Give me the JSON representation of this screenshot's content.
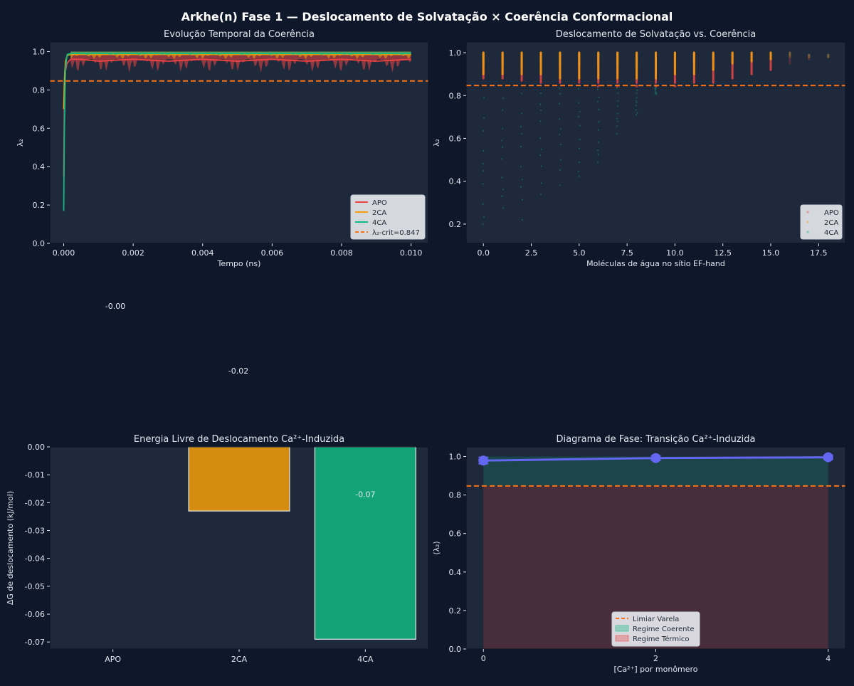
{
  "figure": {
    "suptitle": "Arkhe(n) Fase 1 — Deslocamento de Solvatação × Coerência Conformacional",
    "colors": {
      "background": "#0f172a",
      "axes": "#1e293b",
      "text": "#e2e8f0",
      "APO": "#ef4444",
      "2CA": "#f59e0b",
      "4CA": "#10b981",
      "threshold": "#f97316",
      "phase_line": "#6366f1"
    }
  },
  "chart_data": [
    {
      "id": "panel-time",
      "type": "line",
      "title": "Evolução Temporal da Coerência",
      "xlabel": "Tempo (ns)",
      "ylabel": "λ₂",
      "xlim": [
        -0.0004,
        0.0105
      ],
      "ylim": [
        0.0,
        1.05
      ],
      "xticks": [
        "0.000",
        "0.002",
        "0.004",
        "0.006",
        "0.008",
        "0.010"
      ],
      "yticks": [
        "0.0",
        "0.2",
        "0.4",
        "0.6",
        "0.8",
        "1.0"
      ],
      "series": [
        {
          "name": "APO",
          "x": [
            0.0,
            2e-05,
            5e-05,
            0.0001,
            0.0002,
            0.0005,
            0.001,
            0.002,
            0.003,
            0.004,
            0.005,
            0.006,
            0.007,
            0.008,
            0.009,
            0.01
          ],
          "values": [
            0.35,
            0.75,
            0.9,
            0.94,
            0.96,
            0.96,
            0.95,
            0.96,
            0.95,
            0.96,
            0.95,
            0.96,
            0.95,
            0.96,
            0.95,
            0.96
          ],
          "band_min": 0.89
        },
        {
          "name": "2CA",
          "x": [
            0.0,
            2e-05,
            5e-05,
            0.0001,
            0.0002,
            0.0005,
            0.001,
            0.002,
            0.003,
            0.004,
            0.005,
            0.006,
            0.007,
            0.008,
            0.009,
            0.01
          ],
          "values": [
            0.7,
            0.85,
            0.95,
            0.98,
            0.985,
            0.985,
            0.985,
            0.985,
            0.985,
            0.985,
            0.985,
            0.985,
            0.985,
            0.985,
            0.985,
            0.985
          ],
          "band_min": 0.96
        },
        {
          "name": "4CA",
          "x": [
            0.0,
            2e-05,
            5e-05,
            0.0001,
            0.0002,
            0.0005,
            0.001,
            0.002,
            0.003,
            0.004,
            0.005,
            0.006,
            0.007,
            0.008,
            0.009,
            0.01
          ],
          "values": [
            0.17,
            0.6,
            0.92,
            0.985,
            0.99,
            0.99,
            0.99,
            0.99,
            0.99,
            0.99,
            0.99,
            0.99,
            0.99,
            0.99,
            0.99,
            0.99
          ],
          "band_min": 0.98
        }
      ],
      "threshold": {
        "value": 0.847,
        "label": "λ₂-crit=0.847"
      },
      "legend": "lower-right"
    },
    {
      "id": "panel-scatter",
      "type": "scatter",
      "title": "Deslocamento de Solvatação vs. Coerência",
      "xlabel": "Moléculas de água no sítio EF-hand",
      "ylabel": "λ₂",
      "xlim": [
        -0.9,
        18.9
      ],
      "ylim": [
        0.11,
        1.05
      ],
      "xticks": [
        "0.0",
        "2.5",
        "5.0",
        "7.5",
        "10.0",
        "12.5",
        "15.0",
        "17.5"
      ],
      "yticks": [
        "0.2",
        "0.4",
        "0.6",
        "0.8",
        "1.0"
      ],
      "threshold": {
        "value": 0.847
      },
      "points_per_column": [
        {
          "x": 0,
          "APO": [
            0.88,
            1.0
          ],
          "2CA": [
            0.9,
            1.0
          ],
          "4CA": [
            0.2,
            1.0
          ]
        },
        {
          "x": 1,
          "APO": [
            0.88,
            1.0
          ],
          "2CA": [
            0.9,
            1.0
          ],
          "4CA": [
            0.25,
            1.0
          ]
        },
        {
          "x": 2,
          "APO": [
            0.87,
            1.0
          ],
          "2CA": [
            0.9,
            1.0
          ],
          "4CA": [
            0.2,
            1.0
          ]
        },
        {
          "x": 3,
          "APO": [
            0.86,
            1.0
          ],
          "2CA": [
            0.9,
            1.0
          ],
          "4CA": [
            0.3,
            1.0
          ]
        },
        {
          "x": 4,
          "APO": [
            0.86,
            1.0
          ],
          "2CA": [
            0.88,
            1.0
          ],
          "4CA": [
            0.35,
            1.0
          ]
        },
        {
          "x": 5,
          "APO": [
            0.85,
            1.0
          ],
          "2CA": [
            0.88,
            1.0
          ],
          "4CA": [
            0.4,
            1.0
          ]
        },
        {
          "x": 6,
          "APO": [
            0.84,
            1.0
          ],
          "2CA": [
            0.88,
            1.0
          ],
          "4CA": [
            0.45,
            1.0
          ]
        },
        {
          "x": 7,
          "APO": [
            0.84,
            1.0
          ],
          "2CA": [
            0.88,
            1.0
          ],
          "4CA": [
            0.6,
            1.0
          ]
        },
        {
          "x": 8,
          "APO": [
            0.84,
            1.0
          ],
          "2CA": [
            0.88,
            1.0
          ],
          "4CA": [
            0.7,
            1.0
          ]
        },
        {
          "x": 9,
          "APO": [
            0.84,
            1.0
          ],
          "2CA": [
            0.88,
            1.0
          ],
          "4CA": [
            0.8,
            1.0
          ]
        },
        {
          "x": 10,
          "APO": [
            0.84,
            1.0
          ],
          "2CA": [
            0.9,
            1.0
          ],
          "4CA": [
            0.9,
            1.0
          ]
        },
        {
          "x": 11,
          "APO": [
            0.85,
            1.0
          ],
          "2CA": [
            0.9,
            1.0
          ],
          "4CA": [
            0.95,
            1.0
          ]
        },
        {
          "x": 12,
          "APO": [
            0.86,
            1.0
          ],
          "2CA": [
            0.92,
            1.0
          ],
          "4CA": [
            0.97,
            1.0
          ]
        },
        {
          "x": 13,
          "APO": [
            0.88,
            1.0
          ],
          "2CA": [
            0.95,
            1.0
          ],
          "4CA": [
            0.98,
            1.0
          ]
        },
        {
          "x": 14,
          "APO": [
            0.9,
            1.0
          ],
          "2CA": [
            0.96,
            1.0
          ],
          "4CA": [
            0.99,
            1.0
          ]
        },
        {
          "x": 15,
          "APO": [
            0.92,
            1.0
          ],
          "2CA": [
            0.97,
            1.0
          ],
          "4CA": [
            0.99,
            1.0
          ]
        },
        {
          "x": 16,
          "APO": [
            0.95,
            1.0
          ],
          "2CA": [
            0.98,
            1.0
          ],
          "4CA": [
            0.99,
            1.0
          ]
        },
        {
          "x": 17,
          "APO": [
            0.97,
            0.99
          ],
          "2CA": [
            0.98,
            0.99
          ],
          "4CA": [
            0.98,
            0.99
          ]
        },
        {
          "x": 18,
          "APO": [
            0.98,
            0.99
          ],
          "2CA": [
            0.98,
            0.99
          ],
          "4CA": [
            0.98,
            0.99
          ]
        }
      ],
      "legend_entries": [
        "APO",
        "2CA",
        "4CA"
      ],
      "legend": "lower-right"
    },
    {
      "id": "panel-stray",
      "type": "table",
      "labels": [
        "-0.00",
        "-0.02"
      ]
    },
    {
      "id": "panel-bars",
      "type": "bar",
      "title": "Energia Livre de Deslocamento Ca²⁺-Induzida",
      "ylabel": "ΔG de deslocamento (kJ/mol)",
      "categories": [
        "APO",
        "2CA",
        "4CA"
      ],
      "values": [
        0.0,
        -0.023,
        -0.069
      ],
      "ylim": [
        -0.0725,
        0.0
      ],
      "yticks": [
        "0.00",
        "-0.01",
        "-0.02",
        "-0.03",
        "-0.04",
        "-0.05",
        "-0.06",
        "-0.07"
      ],
      "data_labels": [
        "",
        "",
        "-0.07"
      ]
    },
    {
      "id": "panel-phase",
      "type": "line",
      "title": "Diagrama de Fase: Transição Ca²⁺-Induzida",
      "xlabel": "[Ca²⁺] por monômero",
      "ylabel": "⟨λ₂⟩",
      "x": [
        0,
        2,
        4
      ],
      "values": [
        0.979,
        0.992,
        0.996
      ],
      "errors": [
        0.035,
        0.025,
        0.022
      ],
      "xlim": [
        -0.2,
        4.2
      ],
      "ylim": [
        0.0,
        1.05
      ],
      "xticks": [
        "0",
        "2",
        "4"
      ],
      "yticks": [
        "0.0",
        "0.2",
        "0.4",
        "0.6",
        "0.8",
        "1.0"
      ],
      "threshold": {
        "value": 0.847
      },
      "legend_entries": [
        "Limiar Varela",
        "Regime Coerente",
        "Regime Térmico"
      ],
      "legend": "lower-center"
    }
  ]
}
